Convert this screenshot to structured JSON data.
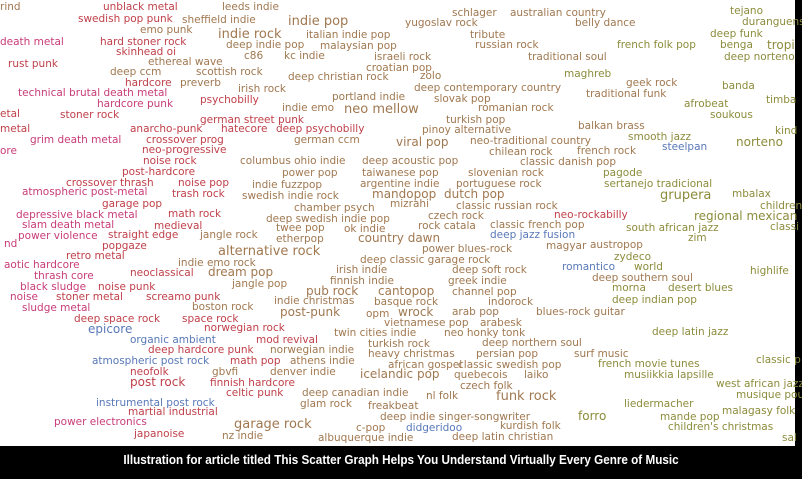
{
  "image": {
    "words": [
      {
        "text": "rind",
        "color": "#a07850"
      },
      {
        "text": "unblack metal",
        "color": "#c0404a"
      },
      {
        "text": "leeds indie",
        "color": "#a07850"
      },
      {
        "text": "schlager",
        "color": "#a07850"
      },
      {
        "text": "australian country",
        "color": "#a07850"
      },
      {
        "text": "tejano",
        "color": "#8c8c3c"
      },
      {
        "text": "swedish pop punk",
        "color": "#c0404a"
      },
      {
        "text": "sheffield indie",
        "color": "#a07850"
      },
      {
        "text": "indie pop",
        "color": "#a07850"
      },
      {
        "text": "yugoslav rock",
        "color": "#a07850"
      },
      {
        "text": "belly dance",
        "color": "#a07850"
      },
      {
        "text": "duranguense",
        "color": "#8c8c3c"
      },
      {
        "text": "emo punk",
        "color": "#a07850"
      },
      {
        "text": "indie rock",
        "color": "#a07850"
      },
      {
        "text": "italian indie pop",
        "color": "#a07850"
      },
      {
        "text": "tribute",
        "color": "#a07850"
      },
      {
        "text": "deep funk",
        "color": "#8c8c3c"
      },
      {
        "text": "death metal",
        "color": "#c83c78"
      },
      {
        "text": "hard stoner rock",
        "color": "#c0404a"
      },
      {
        "text": "deep indie pop",
        "color": "#a07850"
      },
      {
        "text": "malaysian pop",
        "color": "#a07850"
      },
      {
        "text": "russian rock",
        "color": "#a07850"
      },
      {
        "text": "french folk pop",
        "color": "#8c8c3c"
      },
      {
        "text": "benga",
        "color": "#8c8c3c"
      },
      {
        "text": "tropi",
        "color": "#8c8c3c"
      },
      {
        "text": "skinhead oi",
        "color": "#c0404a"
      },
      {
        "text": "c86",
        "color": "#a07850"
      },
      {
        "text": "kc indie",
        "color": "#a07850"
      },
      {
        "text": "israeli rock",
        "color": "#a07850"
      },
      {
        "text": "traditional soul",
        "color": "#a07850"
      },
      {
        "text": "deep norteno",
        "color": "#8c8c3c"
      },
      {
        "text": "rust punk",
        "color": "#c0404a"
      },
      {
        "text": "ethereal wave",
        "color": "#a07850"
      },
      {
        "text": "croatian pop",
        "color": "#a07850"
      },
      {
        "text": "deep ccm",
        "color": "#a07850"
      },
      {
        "text": "scottish rock",
        "color": "#a07850"
      },
      {
        "text": "deep christian rock",
        "color": "#a07850"
      },
      {
        "text": "zolo",
        "color": "#a07850"
      },
      {
        "text": "maghreb",
        "color": "#8c8c3c"
      },
      {
        "text": "hardcore",
        "color": "#c0404a"
      },
      {
        "text": "preverb",
        "color": "#a07850"
      },
      {
        "text": "irish rock",
        "color": "#a07850"
      },
      {
        "text": "deep contemporary country",
        "color": "#a07850"
      },
      {
        "text": "geek rock",
        "color": "#a07850"
      },
      {
        "text": "banda",
        "color": "#8c8c3c"
      },
      {
        "text": "technical brutal death metal",
        "color": "#c83c78"
      },
      {
        "text": "psychobilly",
        "color": "#c0404a"
      },
      {
        "text": "portland indie",
        "color": "#a07850"
      },
      {
        "text": "slovak pop",
        "color": "#a07850"
      },
      {
        "text": "traditional funk",
        "color": "#a07850"
      },
      {
        "text": "timba",
        "color": "#8c8c3c"
      },
      {
        "text": "afrobeat",
        "color": "#8c8c3c"
      },
      {
        "text": "hardcore punk",
        "color": "#c83c78"
      },
      {
        "text": "indie emo",
        "color": "#a07850"
      },
      {
        "text": "neo mellow",
        "color": "#a07850"
      },
      {
        "text": "romanian rock",
        "color": "#a07850"
      },
      {
        "text": "soukous",
        "color": "#8c8c3c"
      },
      {
        "text": "etal",
        "color": "#c0404a"
      },
      {
        "text": "stoner rock",
        "color": "#c0404a"
      },
      {
        "text": "german street punk",
        "color": "#c0404a"
      },
      {
        "text": "turkish pop",
        "color": "#a07850"
      },
      {
        "text": "metal",
        "color": "#c0404a"
      },
      {
        "text": "anarcho-punk",
        "color": "#c0404a"
      },
      {
        "text": "hatecore",
        "color": "#c0404a"
      },
      {
        "text": "deep psychobilly",
        "color": "#c0404a"
      },
      {
        "text": "pinoy alternative",
        "color": "#a07850"
      },
      {
        "text": "balkan brass",
        "color": "#a07850"
      },
      {
        "text": "kind",
        "color": "#8c8c3c"
      },
      {
        "text": "grim death metal",
        "color": "#c83c78"
      },
      {
        "text": "crossover prog",
        "color": "#c0404a"
      },
      {
        "text": "german ccm",
        "color": "#a07850"
      },
      {
        "text": "viral pop",
        "color": "#a07850"
      },
      {
        "text": "neo-traditional country",
        "color": "#a07850"
      },
      {
        "text": "smooth jazz",
        "color": "#8c8c3c"
      },
      {
        "text": "norteno",
        "color": "#8c8c3c"
      },
      {
        "text": "ore",
        "color": "#c83c78"
      },
      {
        "text": "neo-progressive",
        "color": "#c0404a"
      },
      {
        "text": "chilean rock",
        "color": "#a07850"
      },
      {
        "text": "french rock",
        "color": "#a07850"
      },
      {
        "text": "steelpan",
        "color": "#5878b8"
      },
      {
        "text": "noise rock",
        "color": "#c0404a"
      },
      {
        "text": "columbus ohio indie",
        "color": "#a07850"
      },
      {
        "text": "deep acoustic pop",
        "color": "#a07850"
      },
      {
        "text": "classic danish pop",
        "color": "#a07850"
      },
      {
        "text": "post-hardcore",
        "color": "#c0404a"
      },
      {
        "text": "power pop",
        "color": "#a07850"
      },
      {
        "text": "taiwanese pop",
        "color": "#a07850"
      },
      {
        "text": "slovenian rock",
        "color": "#a07850"
      },
      {
        "text": "pagode",
        "color": "#8c8c3c"
      },
      {
        "text": "crossover thrash",
        "color": "#c0404a"
      },
      {
        "text": "noise pop",
        "color": "#c0404a"
      },
      {
        "text": "indie fuzzpop",
        "color": "#a07850"
      },
      {
        "text": "argentine indie",
        "color": "#a07850"
      },
      {
        "text": "portuguese rock",
        "color": "#a07850"
      },
      {
        "text": "sertanejo tradicional",
        "color": "#8c8c3c"
      },
      {
        "text": "atmospheric post-metal",
        "color": "#c83c78"
      },
      {
        "text": "trash rock",
        "color": "#c0404a"
      },
      {
        "text": "swedish indie rock",
        "color": "#a07850"
      },
      {
        "text": "mandopop",
        "color": "#a07850"
      },
      {
        "text": "dutch pop",
        "color": "#a07850"
      },
      {
        "text": "grupera",
        "color": "#8c8c3c"
      },
      {
        "text": "mbalax",
        "color": "#8c8c3c"
      },
      {
        "text": "garage pop",
        "color": "#c0404a"
      },
      {
        "text": "chamber psych",
        "color": "#a07850"
      },
      {
        "text": "mizrahi",
        "color": "#a07850"
      },
      {
        "text": "classic russian rock",
        "color": "#a07850"
      },
      {
        "text": "children'",
        "color": "#8c8c3c"
      },
      {
        "text": "depressive black metal",
        "color": "#c83c78"
      },
      {
        "text": "math rock",
        "color": "#c0404a"
      },
      {
        "text": "deep swedish indie pop",
        "color": "#a07850"
      },
      {
        "text": "czech rock",
        "color": "#a07850"
      },
      {
        "text": "neo-rockabilly",
        "color": "#c0404a"
      },
      {
        "text": "regional mexican",
        "color": "#8c8c3c"
      },
      {
        "text": "slam death metal",
        "color": "#c83c78"
      },
      {
        "text": "medieval",
        "color": "#c0404a"
      },
      {
        "text": "twee pop",
        "color": "#a07850"
      },
      {
        "text": "ok indie",
        "color": "#a07850"
      },
      {
        "text": "rock catala",
        "color": "#a07850"
      },
      {
        "text": "classic french pop",
        "color": "#a07850"
      },
      {
        "text": "south african jazz",
        "color": "#8c8c3c"
      },
      {
        "text": "classi",
        "color": "#8c8c3c"
      },
      {
        "text": "power violence",
        "color": "#c83c78"
      },
      {
        "text": "straight edge",
        "color": "#c0404a"
      },
      {
        "text": "jangle rock",
        "color": "#a07850"
      },
      {
        "text": "etherpop",
        "color": "#a07850"
      },
      {
        "text": "country dawn",
        "color": "#a07850"
      },
      {
        "text": "deep jazz fusion",
        "color": "#5878b8"
      },
      {
        "text": "zim",
        "color": "#8c8c3c"
      },
      {
        "text": "nd",
        "color": "#c83c78"
      },
      {
        "text": "popgaze",
        "color": "#c0404a"
      },
      {
        "text": "magyar",
        "color": "#a07850"
      },
      {
        "text": "austropop",
        "color": "#a07850"
      },
      {
        "text": "alternative rock",
        "color": "#a07850"
      },
      {
        "text": "power blues-rock",
        "color": "#a07850"
      },
      {
        "text": "zydeco",
        "color": "#8c8c3c"
      },
      {
        "text": "retro metal",
        "color": "#c0404a"
      },
      {
        "text": "indie emo rock",
        "color": "#a07850"
      },
      {
        "text": "deep classic garage rock",
        "color": "#a07850"
      },
      {
        "text": "aotic hardcore",
        "color": "#c83c78"
      },
      {
        "text": "neoclassical",
        "color": "#c0404a"
      },
      {
        "text": "dream pop",
        "color": "#a07850"
      },
      {
        "text": "irish indie",
        "color": "#a07850"
      },
      {
        "text": "deep soft rock",
        "color": "#a07850"
      },
      {
        "text": "romantico",
        "color": "#5878b8"
      },
      {
        "text": "world",
        "color": "#8c8c3c"
      },
      {
        "text": "highlife",
        "color": "#8c8c3c"
      },
      {
        "text": "thrash core",
        "color": "#c83c78"
      },
      {
        "text": "jangle pop",
        "color": "#a07850"
      },
      {
        "text": "finnish indie",
        "color": "#a07850"
      },
      {
        "text": "greek indie",
        "color": "#a07850"
      },
      {
        "text": "deep southern soul",
        "color": "#a07850"
      },
      {
        "text": "black sludge",
        "color": "#c83c78"
      },
      {
        "text": "noise punk",
        "color": "#c0404a"
      },
      {
        "text": "pub rock",
        "color": "#a07850"
      },
      {
        "text": "cantopop",
        "color": "#a07850"
      },
      {
        "text": "channel pop",
        "color": "#a07850"
      },
      {
        "text": "morna",
        "color": "#8c8c3c"
      },
      {
        "text": "desert blues",
        "color": "#8c8c3c"
      },
      {
        "text": "noise",
        "color": "#c83c78"
      },
      {
        "text": "stoner metal",
        "color": "#c0404a"
      },
      {
        "text": "screamo punk",
        "color": "#c0404a"
      },
      {
        "text": "indie christmas",
        "color": "#a07850"
      },
      {
        "text": "basque rock",
        "color": "#a07850"
      },
      {
        "text": "indorock",
        "color": "#a07850"
      },
      {
        "text": "deep indian pop",
        "color": "#8c8c3c"
      },
      {
        "text": "sludge metal",
        "color": "#c83c78"
      },
      {
        "text": "boston rock",
        "color": "#a07850"
      },
      {
        "text": "post-punk",
        "color": "#a07850"
      },
      {
        "text": "opm",
        "color": "#a07850"
      },
      {
        "text": "wrock",
        "color": "#a07850"
      },
      {
        "text": "arab pop",
        "color": "#a07850"
      },
      {
        "text": "blues-rock guitar",
        "color": "#a07850"
      },
      {
        "text": "deep space rock",
        "color": "#c0404a"
      },
      {
        "text": "space rock",
        "color": "#c0404a"
      },
      {
        "text": "vietnamese pop",
        "color": "#a07850"
      },
      {
        "text": "arabesk",
        "color": "#a07850"
      },
      {
        "text": "epicore",
        "color": "#5878b8"
      },
      {
        "text": "norwegian rock",
        "color": "#c0404a"
      },
      {
        "text": "twin cities indie",
        "color": "#a07850"
      },
      {
        "text": "neo honky tonk",
        "color": "#a07850"
      },
      {
        "text": "deep latin jazz",
        "color": "#8c8c3c"
      },
      {
        "text": "organic ambient",
        "color": "#5878b8"
      },
      {
        "text": "mod revival",
        "color": "#c0404a"
      },
      {
        "text": "turkish rock",
        "color": "#a07850"
      },
      {
        "text": "deep northern soul",
        "color": "#a07850"
      },
      {
        "text": "deep hardcore punk",
        "color": "#c0404a"
      },
      {
        "text": "norwegian indie",
        "color": "#a07850"
      },
      {
        "text": "heavy christmas",
        "color": "#a07850"
      },
      {
        "text": "persian pop",
        "color": "#a07850"
      },
      {
        "text": "surf music",
        "color": "#a07850"
      },
      {
        "text": "atmospheric post rock",
        "color": "#5878b8"
      },
      {
        "text": "math pop",
        "color": "#c0404a"
      },
      {
        "text": "athens indie",
        "color": "#a07850"
      },
      {
        "text": "african gospel",
        "color": "#a07850"
      },
      {
        "text": "classic swedish pop",
        "color": "#a07850"
      },
      {
        "text": "french movie tunes",
        "color": "#8c8c3c"
      },
      {
        "text": "classic p",
        "color": "#8c8c3c"
      },
      {
        "text": "neofolk",
        "color": "#c0404a"
      },
      {
        "text": "gbvfi",
        "color": "#a07850"
      },
      {
        "text": "denver indie",
        "color": "#a07850"
      },
      {
        "text": "icelandic pop",
        "color": "#a07850"
      },
      {
        "text": "quebecois",
        "color": "#a07850"
      },
      {
        "text": "laiko",
        "color": "#a07850"
      },
      {
        "text": "musiikkia lapsille",
        "color": "#8c8c3c"
      },
      {
        "text": "post rock",
        "color": "#c0404a"
      },
      {
        "text": "finnish hardcore",
        "color": "#c0404a"
      },
      {
        "text": "czech folk",
        "color": "#a07850"
      },
      {
        "text": "west african jazz",
        "color": "#8c8c3c"
      },
      {
        "text": "celtic punk",
        "color": "#c0404a"
      },
      {
        "text": "deep canadian indie",
        "color": "#a07850"
      },
      {
        "text": "nl folk",
        "color": "#a07850"
      },
      {
        "text": "funk rock",
        "color": "#a07850"
      },
      {
        "text": "musique pou",
        "color": "#8c8c3c"
      },
      {
        "text": "instrumental post rock",
        "color": "#5878b8"
      },
      {
        "text": "glam rock",
        "color": "#a07850"
      },
      {
        "text": "freakbeat",
        "color": "#a07850"
      },
      {
        "text": "liedermacher",
        "color": "#8c8c3c"
      },
      {
        "text": "martial industrial",
        "color": "#c0404a"
      },
      {
        "text": "malagasy folk",
        "color": "#8c8c3c"
      },
      {
        "text": "deep indie singer-songwriter",
        "color": "#a07850"
      },
      {
        "text": "forro",
        "color": "#8c8c3c"
      },
      {
        "text": "mande pop",
        "color": "#8c8c3c"
      },
      {
        "text": "power electronics",
        "color": "#c83c78"
      },
      {
        "text": "garage rock",
        "color": "#a07850"
      },
      {
        "text": "c-pop",
        "color": "#a07850"
      },
      {
        "text": "didgeridoo",
        "color": "#5878b8"
      },
      {
        "text": "kurdish folk",
        "color": "#a07850"
      },
      {
        "text": "children's christmas",
        "color": "#8c8c3c"
      },
      {
        "text": "japanoise",
        "color": "#c0404a"
      },
      {
        "text": "nz indie",
        "color": "#a07850"
      },
      {
        "text": "albuquerque indie",
        "color": "#a07850"
      },
      {
        "text": "deep latin christian",
        "color": "#a07850"
      },
      {
        "text": "sal",
        "color": "#8c8c3c"
      }
    ]
  },
  "caption": "Illustration for article titled This Scatter Graph Helps You Understand Virtually Every Genre of Music"
}
